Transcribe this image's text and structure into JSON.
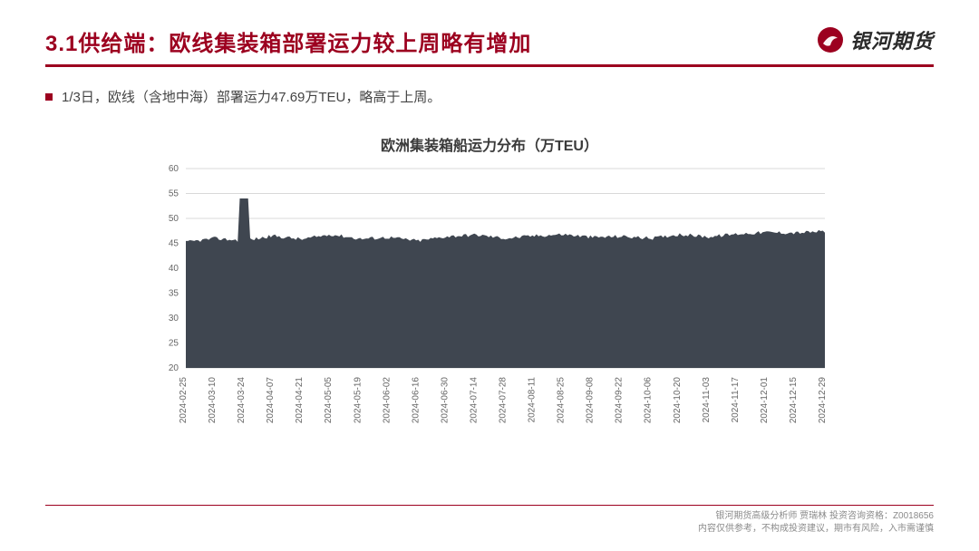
{
  "header": {
    "title_color": "#9c001f",
    "title": "3.1供给端：欧线集装箱部署运力较上周略有增加",
    "underline_color": "#9c001f",
    "logo_text": "银河期货",
    "logo_circle_bg": "#9c001f",
    "logo_circle_inner": "#ffffff",
    "logo_text_color": "#2a2a2a"
  },
  "bullet": {
    "square_color": "#9c001f",
    "text_color": "#444444",
    "text": "1/3日，欧线（含地中海）部署运力47.69万TEU，略高于上周。"
  },
  "chart": {
    "type": "area",
    "title": "欧洲集装箱船运力分布（万TEU）",
    "title_color": "#3a3a3a",
    "plot_bg": "#ffffff",
    "area_color": "#3f4650",
    "grid_color": "#d9d9d9",
    "axis_text_color": "#666666",
    "axis_fontsize": 10,
    "ylim": [
      20,
      60
    ],
    "ytick_step": 5,
    "yticks": [
      20,
      25,
      30,
      35,
      40,
      45,
      50,
      55,
      60
    ],
    "x_labels": [
      "2024-02-25",
      "2024-03-10",
      "2024-03-24",
      "2024-04-07",
      "2024-04-21",
      "2024-05-05",
      "2024-05-19",
      "2024-06-02",
      "2024-06-16",
      "2024-06-30",
      "2024-07-14",
      "2024-07-28",
      "2024-08-11",
      "2024-08-25",
      "2024-09-08",
      "2024-09-22",
      "2024-10-06",
      "2024-10-20",
      "2024-11-03",
      "2024-11-17",
      "2024-12-01",
      "2024-12-15",
      "2024-12-29"
    ],
    "values": [
      45.2,
      46.0,
      45.5,
      46.5,
      45.8,
      46.8,
      45.9,
      46.2,
      45.5,
      46.4,
      46.7,
      46.0,
      46.5,
      46.8,
      46.2,
      46.4,
      46.0,
      46.8,
      46.3,
      46.9,
      47.2,
      47.1,
      47.4
    ],
    "spike": {
      "index": 2,
      "value": 54
    },
    "noise_amp": 0.7
  },
  "footer": {
    "color": "#8a8a8a",
    "line_color": "#9c001f",
    "line1": "银河期货高级分析师 贾瑞林 投资咨询资格：Z0018656",
    "line2": "内容仅供参考，不构成投资建议，期市有风险，入市需谨慎"
  }
}
